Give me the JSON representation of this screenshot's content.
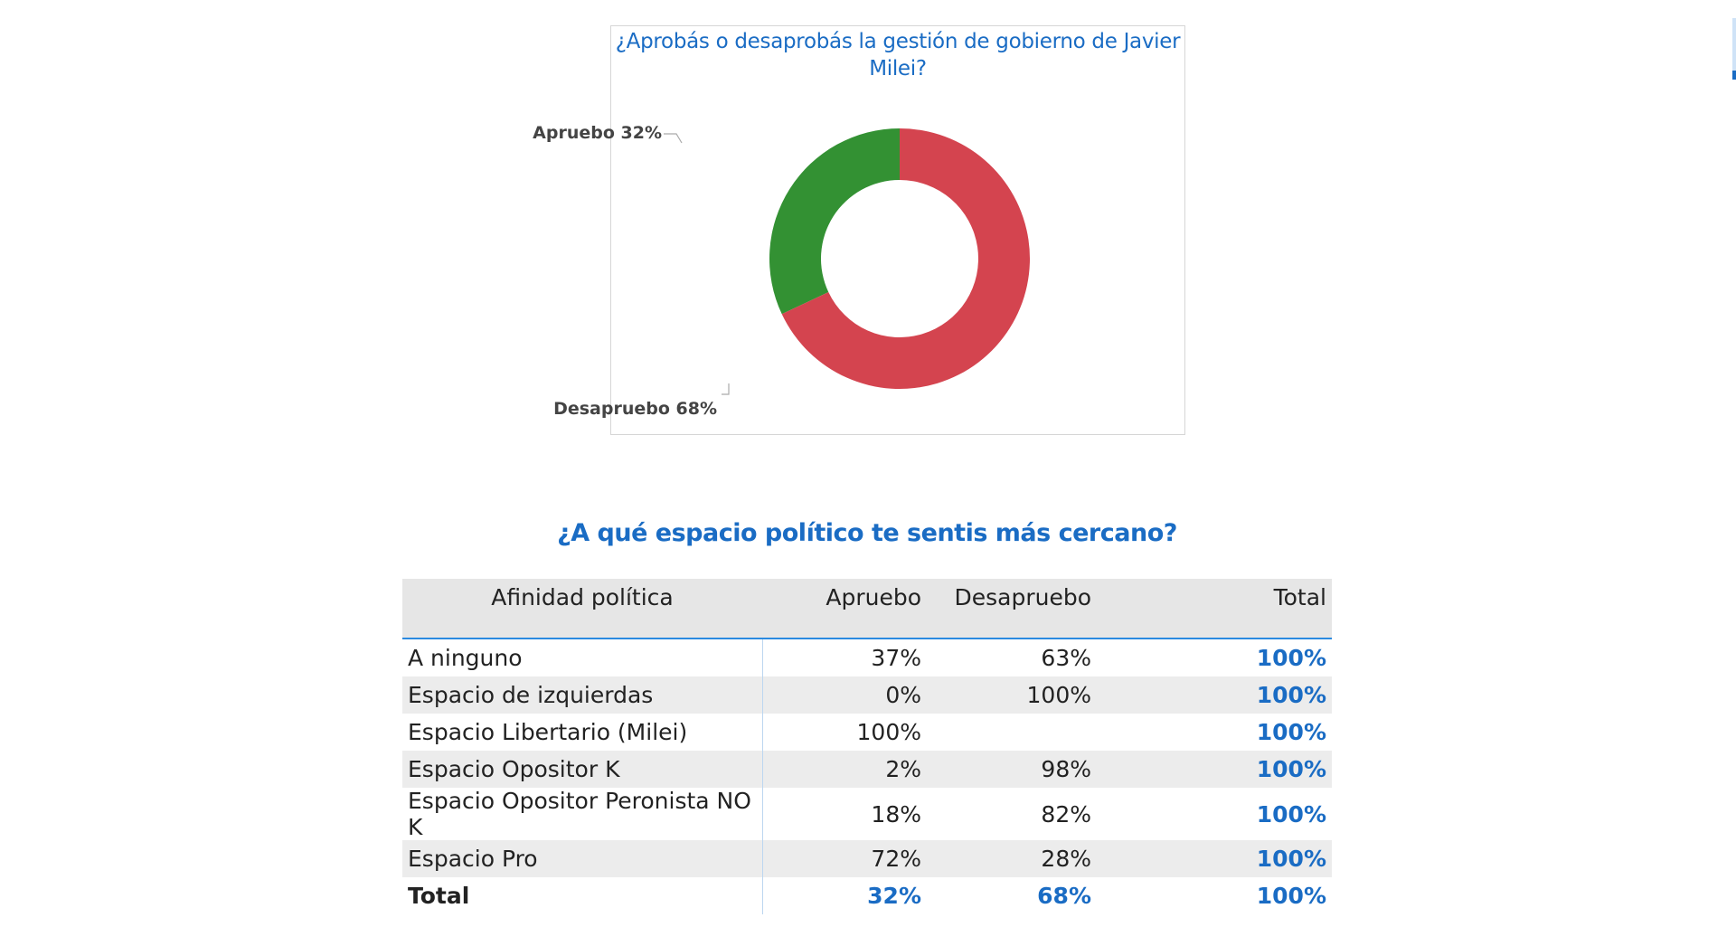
{
  "chart_data": {
    "type": "pie",
    "donut": true,
    "title": "¿Aprobás o desaprobás la gestión de gobierno de Javier Milei?",
    "categories": [
      "Apruebo",
      "Desapruebo"
    ],
    "values": [
      32,
      68
    ],
    "labels": [
      "Apruebo 32%",
      "Desapruebo 68%"
    ],
    "colors": [
      "#339133",
      "#d4444f"
    ]
  },
  "table": {
    "title": "¿A qué espacio político te sentis más cercano?",
    "headers": [
      "Afinidad política",
      "Apruebo",
      "Desapruebo",
      "Total"
    ],
    "rows": [
      [
        "A ninguno",
        "37%",
        "63%",
        "100%"
      ],
      [
        "Espacio de izquierdas",
        "0%",
        "100%",
        "100%"
      ],
      [
        "Espacio Libertario (Milei)",
        "100%",
        "",
        "100%"
      ],
      [
        "Espacio Opositor K",
        "2%",
        "98%",
        "100%"
      ],
      [
        "Espacio Opositor Peronista NO K",
        "18%",
        "82%",
        "100%"
      ],
      [
        "Espacio Pro",
        "72%",
        "28%",
        "100%"
      ]
    ],
    "total_row": [
      "Total",
      "32%",
      "68%",
      "100%"
    ],
    "accent_color": "#1a6cc4"
  }
}
